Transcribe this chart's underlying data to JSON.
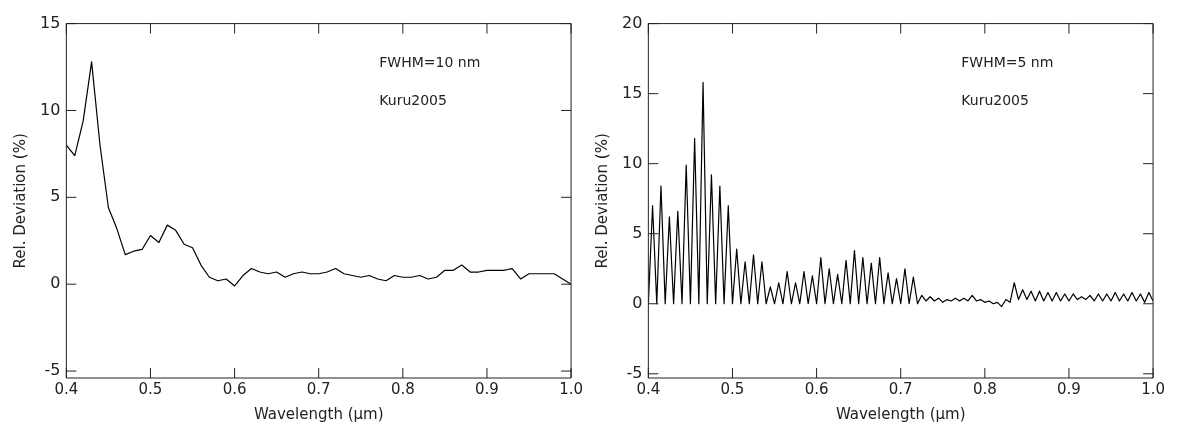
{
  "chart_data": [
    {
      "type": "line",
      "xlabel": "Wavelength (μm)",
      "ylabel": "Rel. Deviation (%)",
      "color": "#000000",
      "marker": "none",
      "annotations": [
        "FWHM=10 nm",
        "Kuru2005"
      ],
      "xlim": [
        0.4,
        1.0
      ],
      "ylim": [
        -5.4,
        15
      ],
      "xticks": [
        0.4,
        0.5,
        0.6,
        0.7,
        0.8,
        0.9,
        {
          "value": 1.0,
          "label": "1.0"
        }
      ],
      "yticks": [
        -5,
        0,
        5,
        10,
        15
      ],
      "x": [
        0.4,
        0.41,
        0.42,
        0.43,
        0.44,
        0.45,
        0.46,
        0.47,
        0.48,
        0.49,
        0.5,
        0.51,
        0.52,
        0.53,
        0.54,
        0.55,
        0.56,
        0.57,
        0.58,
        0.59,
        0.6,
        0.61,
        0.62,
        0.63,
        0.64,
        0.65,
        0.66,
        0.67,
        0.68,
        0.69,
        0.7,
        0.71,
        0.72,
        0.73,
        0.74,
        0.75,
        0.76,
        0.77,
        0.78,
        0.79,
        0.8,
        0.81,
        0.82,
        0.83,
        0.84,
        0.85,
        0.86,
        0.87,
        0.88,
        0.89,
        0.9,
        0.91,
        0.92,
        0.93,
        0.94,
        0.95,
        0.96,
        0.97,
        0.98,
        0.99,
        1.0
      ],
      "values": [
        8.0,
        7.4,
        9.4,
        12.8,
        8.0,
        4.4,
        3.2,
        1.7,
        1.9,
        2.0,
        2.8,
        2.4,
        3.4,
        3.1,
        2.3,
        2.1,
        1.1,
        0.4,
        0.2,
        0.3,
        -0.1,
        0.5,
        0.9,
        0.7,
        0.6,
        0.7,
        0.4,
        0.6,
        0.7,
        0.6,
        0.6,
        0.7,
        0.9,
        0.6,
        0.5,
        0.4,
        0.5,
        0.3,
        0.2,
        0.5,
        0.4,
        0.4,
        0.5,
        0.3,
        0.4,
        0.8,
        0.8,
        1.1,
        0.7,
        0.7,
        0.8,
        0.8,
        0.8,
        0.9,
        0.3,
        0.6,
        0.6,
        0.6,
        0.6,
        0.3,
        0.0
      ]
    },
    {
      "type": "line",
      "xlabel": "Wavelength (μm)",
      "ylabel": "Rel. Deviation (%)",
      "color": "#000000",
      "marker": "none",
      "annotations": [
        "FWHM=5 nm",
        "Kuru2005"
      ],
      "xlim": [
        0.4,
        1.0
      ],
      "ylim": [
        -5.3,
        20
      ],
      "xticks": [
        0.4,
        0.5,
        0.6,
        0.7,
        0.8,
        0.9,
        {
          "value": 1.0,
          "label": "1.0"
        }
      ],
      "yticks": [
        -5,
        0,
        5,
        10,
        15,
        20
      ],
      "x": [
        0.4,
        0.405,
        0.41,
        0.415,
        0.42,
        0.425,
        0.43,
        0.435,
        0.44,
        0.445,
        0.45,
        0.455,
        0.46,
        0.465,
        0.47,
        0.475,
        0.48,
        0.485,
        0.49,
        0.495,
        0.5,
        0.505,
        0.51,
        0.515,
        0.52,
        0.525,
        0.53,
        0.535,
        0.54,
        0.545,
        0.55,
        0.555,
        0.56,
        0.565,
        0.57,
        0.575,
        0.58,
        0.585,
        0.59,
        0.595,
        0.6,
        0.605,
        0.61,
        0.615,
        0.62,
        0.625,
        0.63,
        0.635,
        0.64,
        0.645,
        0.65,
        0.655,
        0.66,
        0.665,
        0.67,
        0.675,
        0.68,
        0.685,
        0.69,
        0.695,
        0.7,
        0.705,
        0.71,
        0.715,
        0.72,
        0.725,
        0.73,
        0.735,
        0.74,
        0.745,
        0.75,
        0.755,
        0.76,
        0.765,
        0.77,
        0.775,
        0.78,
        0.785,
        0.79,
        0.795,
        0.8,
        0.805,
        0.81,
        0.815,
        0.82,
        0.825,
        0.83,
        0.835,
        0.84,
        0.845,
        0.85,
        0.855,
        0.86,
        0.865,
        0.87,
        0.875,
        0.88,
        0.885,
        0.89,
        0.895,
        0.9,
        0.905,
        0.91,
        0.915,
        0.92,
        0.925,
        0.93,
        0.935,
        0.94,
        0.945,
        0.95,
        0.955,
        0.96,
        0.965,
        0.97,
        0.975,
        0.98,
        0.985,
        0.99,
        0.995,
        1.0
      ],
      "values": [
        0,
        7.0,
        0,
        8.4,
        0,
        6.2,
        0,
        6.6,
        0,
        9.9,
        0,
        11.8,
        0,
        15.8,
        0,
        9.2,
        0,
        8.4,
        0,
        7.0,
        0,
        3.9,
        0,
        3.0,
        0,
        3.5,
        0,
        3.0,
        0,
        1.2,
        0,
        1.5,
        0,
        2.3,
        0,
        1.5,
        0,
        2.3,
        0,
        2.0,
        0,
        3.3,
        0,
        2.5,
        0,
        2.1,
        0,
        3.1,
        0,
        3.8,
        0,
        3.3,
        0,
        2.9,
        0,
        3.3,
        0,
        2.2,
        0,
        1.8,
        0,
        2.5,
        0,
        1.9,
        0,
        0.6,
        0.2,
        0.5,
        0.2,
        0.4,
        0.1,
        0.3,
        0.2,
        0.4,
        0.2,
        0.4,
        0.2,
        0.6,
        0.2,
        0.3,
        0.1,
        0.2,
        0.0,
        0.1,
        -0.2,
        0.3,
        0.1,
        1.5,
        0.3,
        1.0,
        0.3,
        0.9,
        0.2,
        0.9,
        0.2,
        0.8,
        0.2,
        0.8,
        0.2,
        0.7,
        0.2,
        0.7,
        0.3,
        0.5,
        0.3,
        0.6,
        0.2,
        0.7,
        0.2,
        0.7,
        0.2,
        0.8,
        0.2,
        0.7,
        0.2,
        0.8,
        0.2,
        0.7,
        0.1,
        0.8,
        0.2
      ]
    }
  ]
}
